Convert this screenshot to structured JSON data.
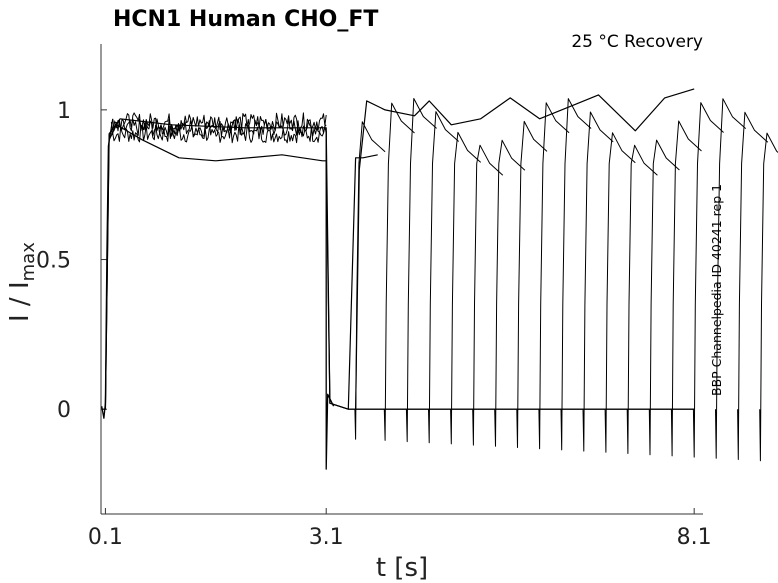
{
  "chart_data": {
    "type": "line",
    "title": "HCN1  Human  CHO_FT",
    "condition": "25 °C  Recovery",
    "side_label": "BBP Channelpedia ID 40241 rep 1",
    "xlabel": "t [s]",
    "ylabel_main": "I / I",
    "ylabel_sub": "max",
    "x_ticks": [
      {
        "value": 0.1,
        "label": "0.1"
      },
      {
        "value": 3.1,
        "label": "3.1"
      },
      {
        "value": 8.1,
        "label": "8.1"
      }
    ],
    "y_ticks": [
      {
        "value": 0,
        "label": "0"
      },
      {
        "value": 0.5,
        "label": "0.5"
      },
      {
        "value": 1,
        "label": "1"
      }
    ],
    "xlim": [
      0.04,
      8.22
    ],
    "ylim": [
      -0.35,
      1.22
    ],
    "grid": false,
    "line_color": "#000000",
    "protocol": {
      "prepulse_start": 0.1,
      "prepulse_end": 3.1,
      "recovery_intervals": [
        0.4,
        0.8,
        1.1,
        1.4,
        1.7,
        2.0,
        2.3,
        2.6,
        2.9,
        3.2,
        3.5,
        3.8,
        4.1,
        4.4,
        4.7,
        5.0,
        5.3,
        5.6,
        5.9,
        6.2,
        6.5,
        6.8
      ]
    },
    "series": [
      {
        "points": [
          [
            0.05,
            0.0
          ],
          [
            0.1,
            0.0
          ],
          [
            0.15,
            0.9
          ],
          [
            0.25,
            0.95
          ],
          [
            0.6,
            0.9
          ],
          [
            1.1,
            0.84
          ],
          [
            1.6,
            0.83
          ],
          [
            2.5,
            0.85
          ],
          [
            3.05,
            0.83
          ],
          [
            3.1,
            0.83
          ],
          [
            3.15,
            0.02
          ],
          [
            3.4,
            0.0
          ],
          [
            8.1,
            0.0
          ]
        ]
      },
      {
        "points": [
          [
            0.1,
            0.0
          ],
          [
            0.15,
            0.92
          ],
          [
            0.3,
            0.97
          ],
          [
            1.0,
            0.95
          ],
          [
            2.0,
            0.94
          ],
          [
            3.1,
            0.94
          ],
          [
            3.15,
            0.02
          ],
          [
            3.4,
            0.0
          ],
          [
            8.1,
            0.0
          ]
        ]
      },
      {
        "name": "",
        "points": [
          [
            3.4,
            0.0
          ],
          [
            3.5,
            0.84
          ],
          [
            3.6,
            0.84
          ],
          [
            3.8,
            0.85
          ]
        ]
      },
      {
        "points": [
          [
            3.5,
            0.0
          ],
          [
            3.55,
            0.8
          ],
          [
            3.65,
            1.03
          ],
          [
            3.9,
            1.0
          ],
          [
            4.3,
            0.98
          ],
          [
            4.5,
            1.03
          ],
          [
            4.8,
            0.95
          ],
          [
            5.2,
            0.97
          ],
          [
            5.6,
            1.04
          ],
          [
            6.0,
            0.97
          ],
          [
            6.5,
            1.02
          ],
          [
            6.8,
            1.05
          ],
          [
            7.3,
            0.93
          ],
          [
            7.7,
            1.04
          ],
          [
            8.1,
            1.07
          ]
        ]
      }
    ]
  }
}
